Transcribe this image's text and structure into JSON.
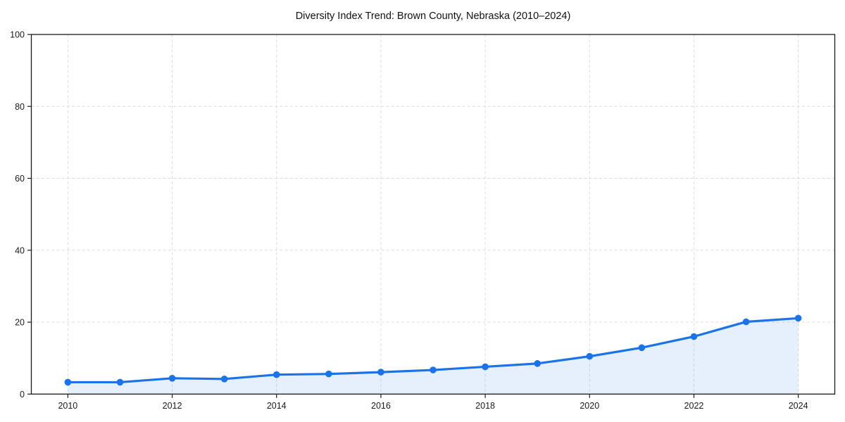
{
  "page": {
    "background": "#ffffff"
  },
  "chart_data": {
    "type": "line",
    "title": "Diversity Index Trend: Brown County, Nebraska (2010–2024)",
    "x": [
      2010,
      2011,
      2012,
      2013,
      2014,
      2015,
      2016,
      2017,
      2018,
      2019,
      2020,
      2021,
      2022,
      2023,
      2024
    ],
    "series": [
      {
        "name": "Diversity Index",
        "values": [
          3.3,
          3.3,
          4.4,
          4.2,
          5.4,
          5.6,
          6.1,
          6.7,
          7.6,
          8.5,
          10.5,
          12.9,
          16.0,
          20.1,
          21.1
        ]
      }
    ],
    "xlabel": "",
    "ylabel": "",
    "xlim": [
      2009.3,
      2024.7
    ],
    "ylim": [
      0,
      100
    ],
    "x_ticks": [
      2010,
      2012,
      2014,
      2016,
      2018,
      2020,
      2022,
      2024
    ],
    "y_ticks": [
      0,
      20,
      40,
      60,
      80,
      100
    ],
    "grid": true,
    "grid_style": "dashed",
    "legend": false,
    "marker": "circle",
    "colors": {
      "line": "#1a73e8",
      "marker": "#1a73e8",
      "fill": "rgba(26,115,232,0.11)",
      "grid": "#dcdcdc",
      "spine": "#1a1a1a",
      "tick_text": "#1a1a1a",
      "title_text": "#111111"
    }
  }
}
